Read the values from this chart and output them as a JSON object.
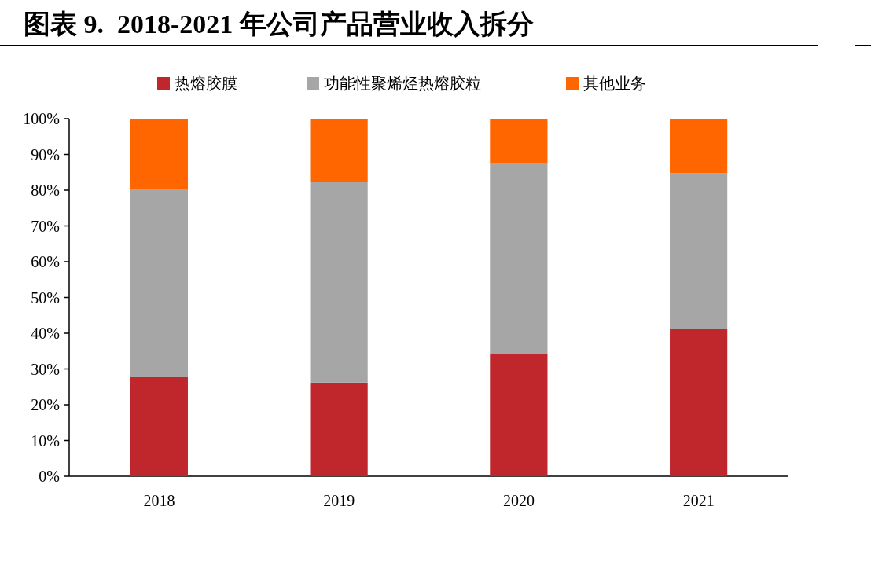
{
  "chart_data": {
    "type": "bar",
    "title": "图表 9.  2018-2021 年公司产品营业收入拆分",
    "stacked": true,
    "legend": "top",
    "grid": false,
    "categories": [
      "2018",
      "2019",
      "2020",
      "2021"
    ],
    "series": [
      {
        "name": "热熔胶膜",
        "color": "#c0272d",
        "values": [
          27.7,
          26.2,
          34.1,
          41.1
        ]
      },
      {
        "name": "功能性聚烯烃热熔胶粒",
        "color": "#a6a6a6",
        "values": [
          52.7,
          56.2,
          53.4,
          43.7
        ]
      },
      {
        "name": "其他业务",
        "color": "#ff6600",
        "values": [
          19.6,
          17.6,
          12.5,
          15.2
        ]
      }
    ],
    "ylim": [
      0,
      100
    ],
    "yticks": [
      {
        "value": 0,
        "label": "0%"
      },
      {
        "value": 10,
        "label": "10%"
      },
      {
        "value": 20,
        "label": "20%"
      },
      {
        "value": 30,
        "label": "30%"
      },
      {
        "value": 40,
        "label": "40%"
      },
      {
        "value": 50,
        "label": "50%"
      },
      {
        "value": 60,
        "label": "60%"
      },
      {
        "value": 70,
        "label": "70%"
      },
      {
        "value": 80,
        "label": "80%"
      },
      {
        "value": 90,
        "label": "90%"
      },
      {
        "value": 100,
        "label": "100%"
      }
    ]
  }
}
